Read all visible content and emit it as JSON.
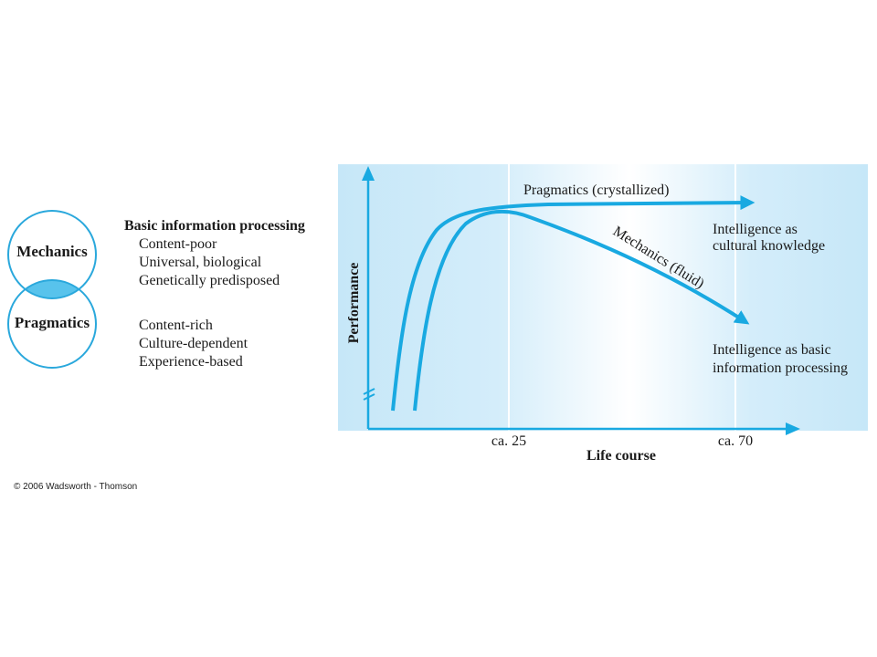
{
  "venn": {
    "top_label": "Mechanics",
    "bottom_label": "Pragmatics",
    "stroke_color": "#2aa8dc",
    "overlap_color": "#58c3ec"
  },
  "mechanics_desc": {
    "heading": "Basic information processing",
    "items": [
      "Content-poor",
      "Universal, biological",
      "Genetically predisposed"
    ]
  },
  "pragmatics_desc": {
    "items": [
      "Content-rich",
      "Culture-dependent",
      "Experience-based"
    ]
  },
  "chart": {
    "ylabel": "Performance",
    "xlabel": "Life course",
    "x_ticks": [
      "ca. 25",
      "ca. 70"
    ],
    "curve_color": "#19a9e1",
    "background_color": "#d6eefa",
    "series": [
      {
        "name": "Pragmatics (crystallized)",
        "trend": "rises steeply in early life, then plateaus into old age"
      },
      {
        "name": "Mechanics (fluid)",
        "trend": "rises steeply, peaks around ca. 25, then declines"
      }
    ],
    "annotations": {
      "pragmatics_end": [
        "Intelligence as",
        "cultural knowledge"
      ],
      "mechanics_end": [
        "Intelligence as basic",
        "information processing"
      ]
    }
  },
  "copyright": "© 2006 Wadsworth - Thomson"
}
